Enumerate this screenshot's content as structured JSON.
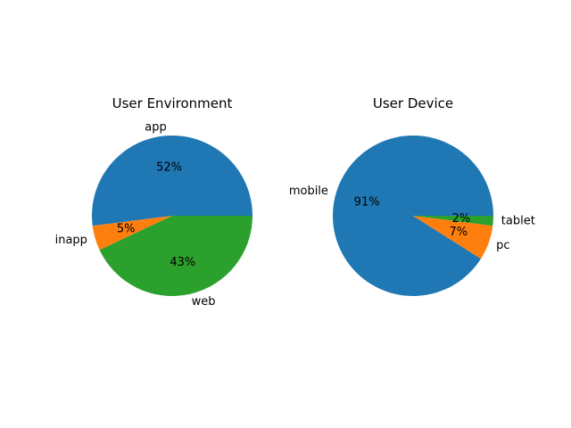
{
  "chart_data": [
    {
      "type": "pie",
      "title": "User Environment",
      "categories": [
        "app",
        "inapp",
        "web"
      ],
      "values": [
        52,
        5,
        43
      ],
      "percent_labels": [
        "52%",
        "5%",
        "43%"
      ],
      "colors": [
        "#1f77b4",
        "#ff7f0e",
        "#2ca02c"
      ],
      "start_angle": 0,
      "direction": "counterclockwise"
    },
    {
      "type": "pie",
      "title": "User Device",
      "categories": [
        "mobile",
        "pc",
        "tablet"
      ],
      "values": [
        91,
        7,
        2
      ],
      "percent_labels": [
        "91%",
        "7%",
        "2%"
      ],
      "colors": [
        "#1f77b4",
        "#ff7f0e",
        "#2ca02c"
      ],
      "start_angle": 0,
      "direction": "counterclockwise"
    }
  ]
}
